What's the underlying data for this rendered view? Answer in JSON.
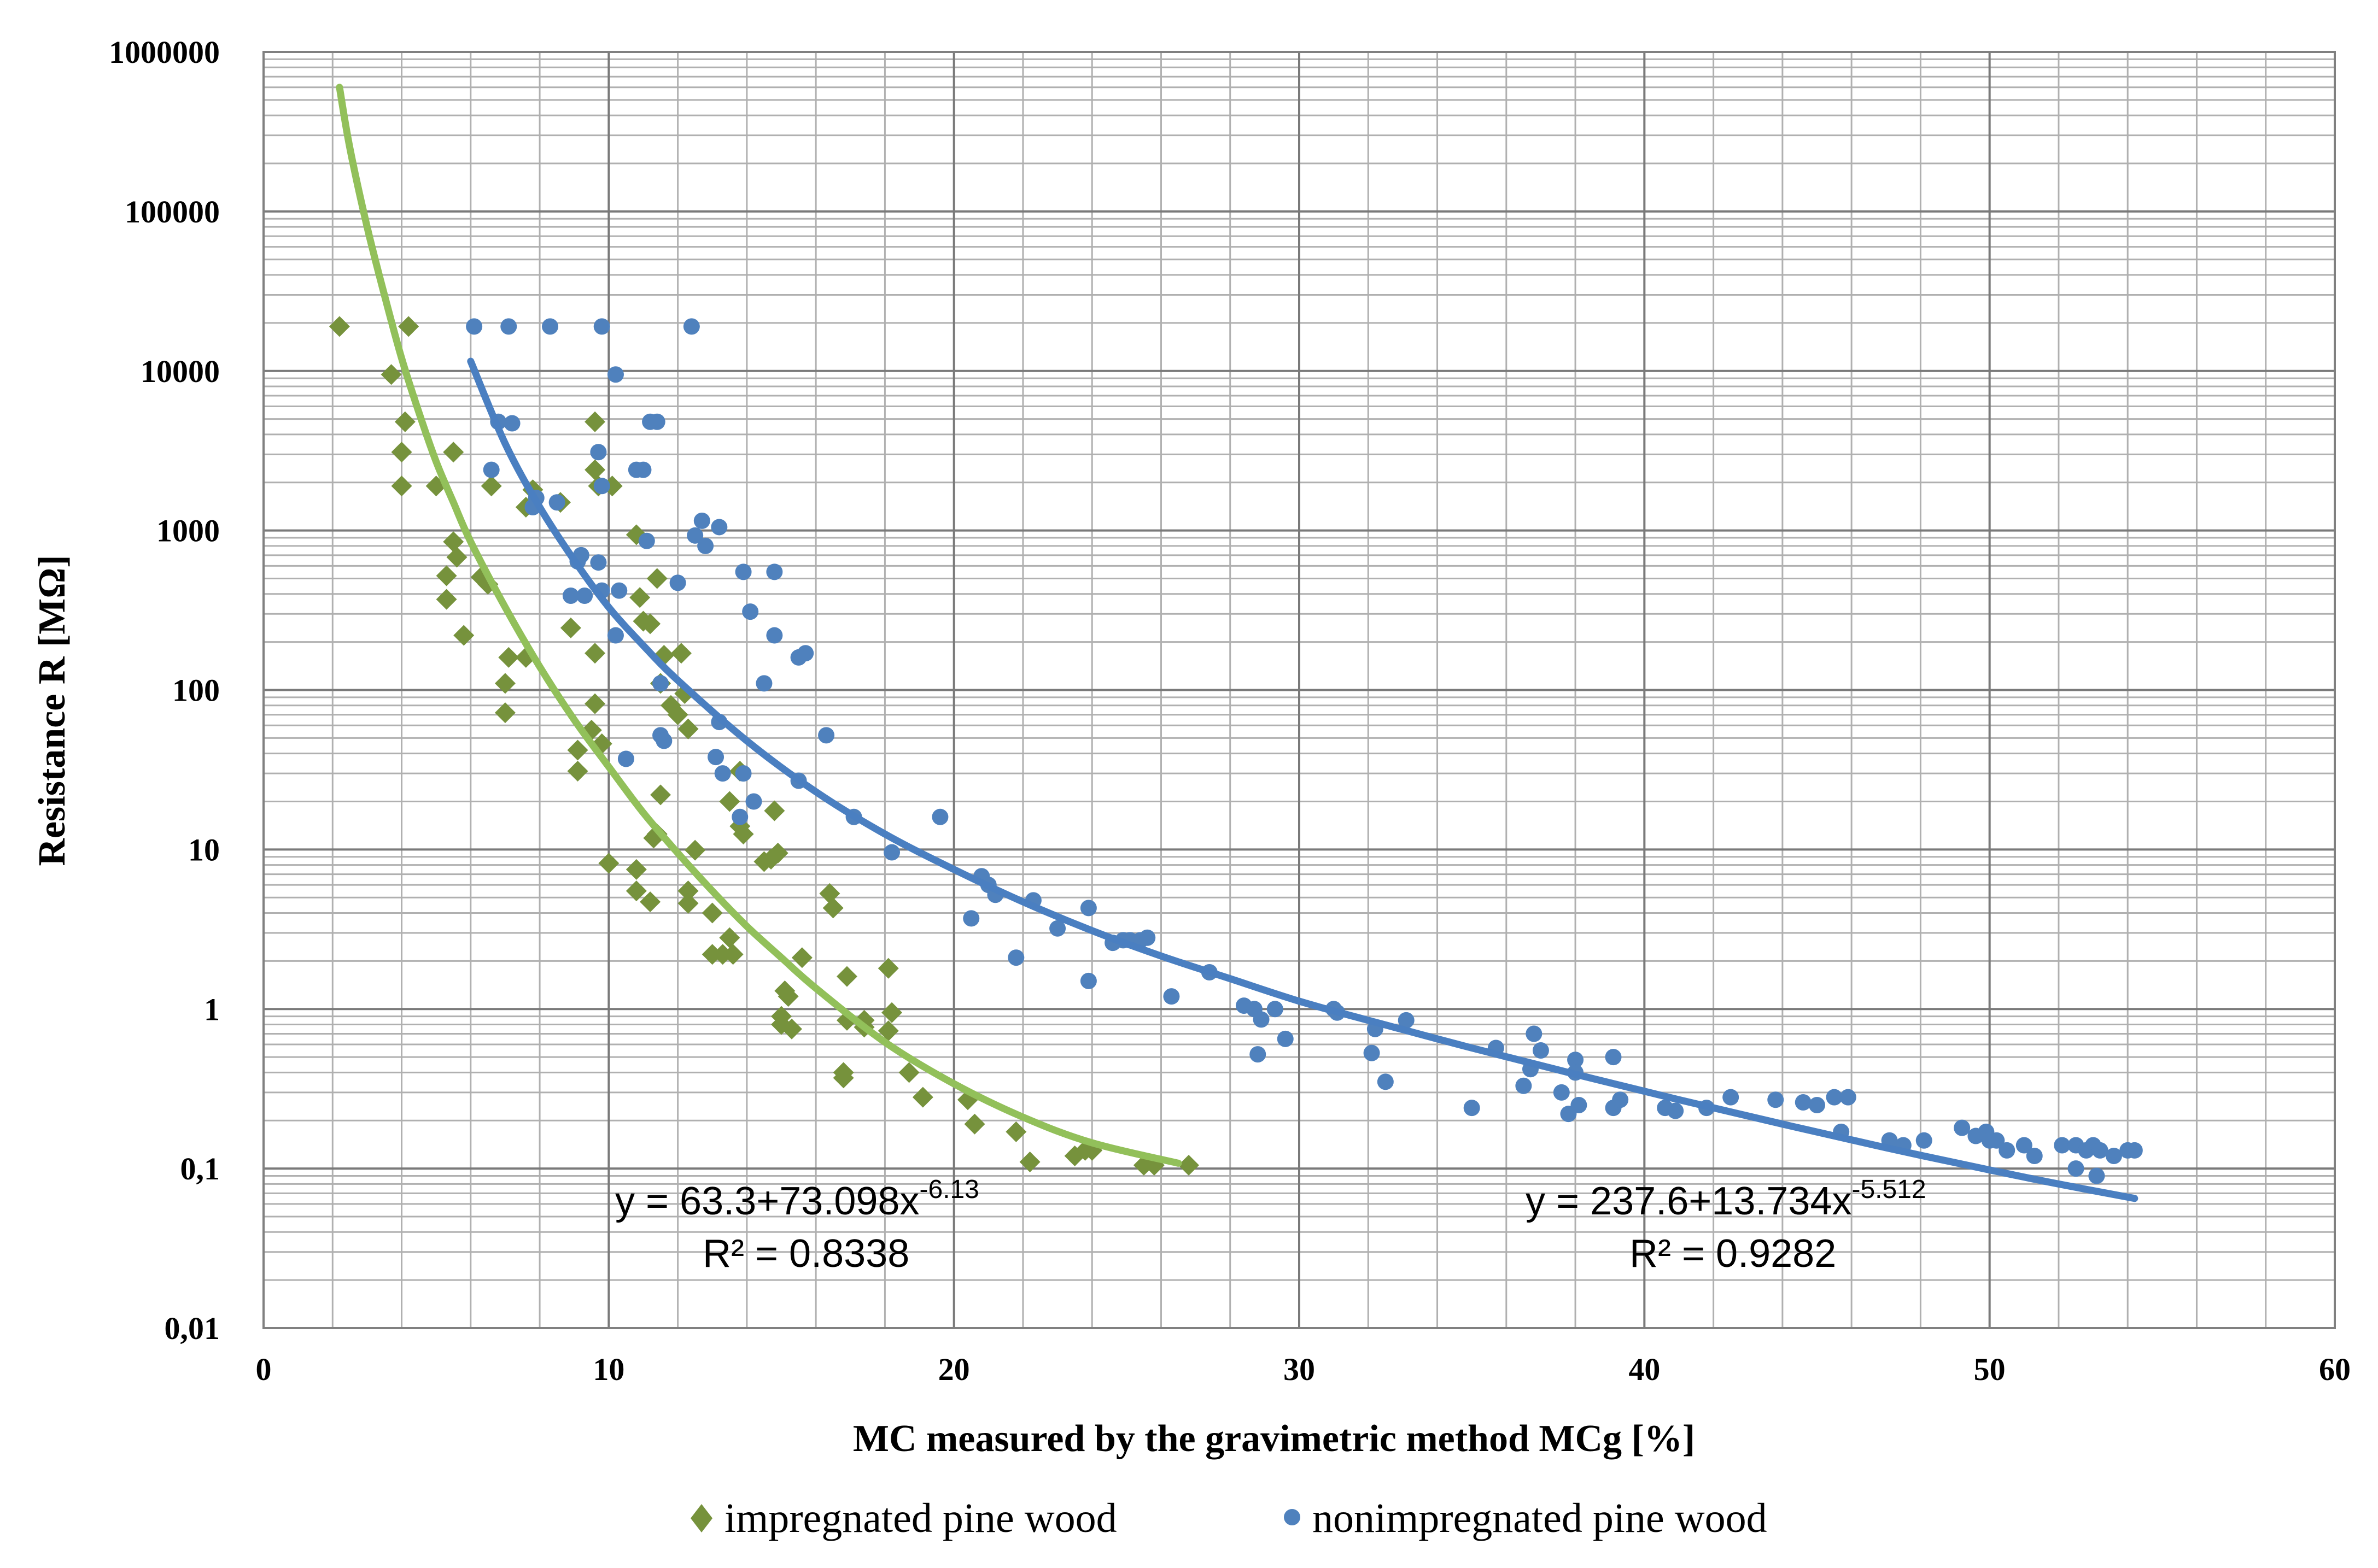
{
  "chart_data": {
    "type": "scatter",
    "xlabel": "MC measured by the gravimetric method MCg [%]",
    "ylabel": "Resistance R [MΩ]",
    "xlim": [
      0,
      60
    ],
    "ylim_log10": [
      -2,
      6
    ],
    "x_ticks": [
      0,
      10,
      20,
      30,
      40,
      50,
      60
    ],
    "y_ticks": [
      {
        "value": 1000000,
        "label": "1000000"
      },
      {
        "value": 100000,
        "label": "100000"
      },
      {
        "value": 10000,
        "label": "10000"
      },
      {
        "value": 1000,
        "label": "1000"
      },
      {
        "value": 100,
        "label": "100"
      },
      {
        "value": 10,
        "label": "10"
      },
      {
        "value": 1,
        "label": "1"
      },
      {
        "value": 0.1,
        "label": "0,1"
      },
      {
        "value": 0.01,
        "label": "0,01"
      }
    ],
    "grid": "major and minor, x step 2, log y minor",
    "legend_position": "bottom",
    "series": [
      {
        "name": "impregnated pine wood",
        "marker": "diamond",
        "color": "#76923C",
        "points": [
          [
            2.2,
            19000
          ],
          [
            3.7,
            9500
          ],
          [
            4.2,
            19000
          ],
          [
            4.1,
            4800
          ],
          [
            4.0,
            3100
          ],
          [
            4.0,
            1900
          ],
          [
            5.0,
            1900
          ],
          [
            5.5,
            3100
          ],
          [
            5.5,
            850
          ],
          [
            5.6,
            680
          ],
          [
            5.3,
            520
          ],
          [
            5.3,
            370
          ],
          [
            5.8,
            220
          ],
          [
            6.3,
            510
          ],
          [
            6.5,
            460
          ],
          [
            6.6,
            1900
          ],
          [
            7.1,
            160
          ],
          [
            7.0,
            110
          ],
          [
            7.0,
            72
          ],
          [
            7.6,
            1400
          ],
          [
            7.8,
            1800
          ],
          [
            7.6,
            160
          ],
          [
            8.6,
            1500
          ],
          [
            8.9,
            245
          ],
          [
            9.1,
            42
          ],
          [
            9.1,
            31
          ],
          [
            9.6,
            4800
          ],
          [
            9.6,
            2400
          ],
          [
            9.7,
            1900
          ],
          [
            10.1,
            1900
          ],
          [
            9.6,
            170
          ],
          [
            9.6,
            82
          ],
          [
            9.5,
            56
          ],
          [
            9.8,
            46
          ],
          [
            10.0,
            8.2
          ],
          [
            10.8,
            940
          ],
          [
            10.9,
            380
          ],
          [
            11.0,
            270
          ],
          [
            11.2,
            260
          ],
          [
            11.4,
            500
          ],
          [
            11.5,
            110
          ],
          [
            11.6,
            165
          ],
          [
            11.8,
            80
          ],
          [
            12.1,
            170
          ],
          [
            12.2,
            95
          ],
          [
            12.0,
            70
          ],
          [
            12.3,
            57
          ],
          [
            11.5,
            22
          ],
          [
            11.4,
            12.5
          ],
          [
            11.3,
            11.8
          ],
          [
            10.8,
            7.5
          ],
          [
            10.8,
            5.5
          ],
          [
            11.2,
            4.7
          ],
          [
            12.3,
            5.5
          ],
          [
            12.3,
            4.6
          ],
          [
            12.5,
            9.9
          ],
          [
            13.0,
            4.0
          ],
          [
            13.0,
            2.2
          ],
          [
            13.3,
            2.2
          ],
          [
            13.5,
            2.8
          ],
          [
            13.6,
            2.2
          ],
          [
            13.5,
            20
          ],
          [
            13.8,
            14
          ],
          [
            13.9,
            12.5
          ],
          [
            13.8,
            31
          ],
          [
            14.8,
            17.5
          ],
          [
            14.9,
            9.5
          ],
          [
            14.7,
            8.7
          ],
          [
            14.5,
            8.4
          ],
          [
            15.1,
            1.3
          ],
          [
            15.2,
            1.2
          ],
          [
            15.0,
            0.9
          ],
          [
            15.0,
            0.8
          ],
          [
            15.3,
            0.75
          ],
          [
            15.6,
            2.1
          ],
          [
            16.4,
            5.3
          ],
          [
            16.5,
            4.3
          ],
          [
            16.9,
            1.6
          ],
          [
            16.9,
            0.85
          ],
          [
            17.4,
            0.85
          ],
          [
            17.4,
            0.77
          ],
          [
            16.8,
            0.4
          ],
          [
            16.8,
            0.37
          ],
          [
            18.1,
            1.8
          ],
          [
            18.1,
            0.73
          ],
          [
            18.2,
            0.95
          ],
          [
            18.7,
            0.4
          ],
          [
            19.1,
            0.28
          ],
          [
            20.4,
            0.27
          ],
          [
            20.6,
            0.19
          ],
          [
            21.8,
            0.17
          ],
          [
            22.2,
            0.11
          ],
          [
            23.5,
            0.12
          ],
          [
            23.8,
            0.13
          ],
          [
            24.0,
            0.13
          ],
          [
            25.5,
            0.105
          ],
          [
            25.8,
            0.105
          ],
          [
            26.8,
            0.105
          ]
        ],
        "trendline": {
          "label": "y = 63.3+73.098x",
          "exponent": "-6.13",
          "r2_label": "R² =  0.8338",
          "curve": [
            [
              2.2,
              600000
            ],
            [
              2.5,
              250000
            ],
            [
              3.0,
              80000
            ],
            [
              3.5,
              30000
            ],
            [
              4.0,
              12000
            ],
            [
              4.5,
              5500
            ],
            [
              5.0,
              2700
            ],
            [
              5.5,
              1500
            ],
            [
              6.0,
              850
            ],
            [
              7.0,
              330
            ],
            [
              8.0,
              140
            ],
            [
              9.0,
              65
            ],
            [
              10.0,
              33
            ],
            [
              11.0,
              17
            ],
            [
              12.0,
              9.5
            ],
            [
              13.0,
              5.5
            ],
            [
              14.0,
              3.3
            ],
            [
              15.0,
              2.1
            ],
            [
              16.0,
              1.35
            ],
            [
              18.0,
              0.62
            ],
            [
              20.0,
              0.34
            ],
            [
              22.0,
              0.21
            ],
            [
              24.0,
              0.145
            ],
            [
              26.5,
              0.108
            ]
          ]
        }
      },
      {
        "name": "nonimpregnated pine wood",
        "marker": "circle",
        "color": "#4F81BD",
        "points": [
          [
            6.1,
            19000
          ],
          [
            7.1,
            19000
          ],
          [
            8.3,
            19000
          ],
          [
            9.8,
            19000
          ],
          [
            12.4,
            19000
          ],
          [
            10.2,
            9500
          ],
          [
            11.2,
            4800
          ],
          [
            11.4,
            4800
          ],
          [
            6.8,
            4800
          ],
          [
            7.2,
            4700
          ],
          [
            6.6,
            2400
          ],
          [
            9.7,
            3100
          ],
          [
            9.8,
            1900
          ],
          [
            10.8,
            2400
          ],
          [
            11.0,
            2400
          ],
          [
            7.9,
            1600
          ],
          [
            8.5,
            1500
          ],
          [
            7.8,
            1400
          ],
          [
            12.7,
            1150
          ],
          [
            13.2,
            1050
          ],
          [
            12.5,
            930
          ],
          [
            12.8,
            800
          ],
          [
            9.2,
            700
          ],
          [
            9.1,
            640
          ],
          [
            11.1,
            860
          ],
          [
            9.7,
            630
          ],
          [
            13.9,
            550
          ],
          [
            14.8,
            550
          ],
          [
            9.3,
            390
          ],
          [
            8.9,
            390
          ],
          [
            9.8,
            420
          ],
          [
            10.3,
            420
          ],
          [
            12.0,
            470
          ],
          [
            14.1,
            310
          ],
          [
            10.2,
            220
          ],
          [
            14.8,
            220
          ],
          [
            15.5,
            160
          ],
          [
            15.7,
            170
          ],
          [
            14.5,
            110
          ],
          [
            11.5,
            110
          ],
          [
            13.2,
            63
          ],
          [
            16.3,
            52
          ],
          [
            11.5,
            52
          ],
          [
            11.6,
            48
          ],
          [
            10.5,
            37
          ],
          [
            13.1,
            38
          ],
          [
            13.3,
            30
          ],
          [
            13.9,
            30
          ],
          [
            13.8,
            16
          ],
          [
            15.5,
            27
          ],
          [
            14.2,
            20
          ],
          [
            17.1,
            16
          ],
          [
            18.2,
            9.6
          ],
          [
            19.6,
            16
          ],
          [
            20.8,
            6.8
          ],
          [
            21.0,
            6.0
          ],
          [
            20.5,
            3.7
          ],
          [
            21.2,
            5.2
          ],
          [
            22.3,
            4.8
          ],
          [
            23.0,
            3.2
          ],
          [
            23.9,
            4.3
          ],
          [
            21.8,
            2.1
          ],
          [
            23.9,
            1.5
          ],
          [
            24.6,
            2.6
          ],
          [
            24.9,
            2.7
          ],
          [
            25.1,
            2.7
          ],
          [
            25.4,
            2.7
          ],
          [
            25.6,
            2.8
          ],
          [
            26.3,
            1.2
          ],
          [
            27.4,
            1.7
          ],
          [
            28.4,
            1.05
          ],
          [
            28.7,
            1.0
          ],
          [
            28.9,
            0.86
          ],
          [
            28.8,
            0.52
          ],
          [
            29.3,
            1.0
          ],
          [
            29.6,
            0.65
          ],
          [
            31.0,
            1.0
          ],
          [
            31.1,
            0.95
          ],
          [
            32.2,
            0.75
          ],
          [
            32.1,
            0.53
          ],
          [
            32.5,
            0.35
          ],
          [
            33.1,
            0.85
          ],
          [
            35.0,
            0.24
          ],
          [
            35.7,
            0.57
          ],
          [
            36.5,
            0.33
          ],
          [
            36.7,
            0.42
          ],
          [
            36.8,
            0.7
          ],
          [
            37.0,
            0.55
          ],
          [
            37.6,
            0.3
          ],
          [
            37.8,
            0.22
          ],
          [
            38.0,
            0.48
          ],
          [
            38.0,
            0.4
          ],
          [
            38.1,
            0.25
          ],
          [
            39.1,
            0.5
          ],
          [
            39.1,
            0.24
          ],
          [
            39.3,
            0.27
          ],
          [
            40.6,
            0.24
          ],
          [
            40.9,
            0.23
          ],
          [
            41.8,
            0.24
          ],
          [
            42.5,
            0.28
          ],
          [
            43.8,
            0.27
          ],
          [
            44.6,
            0.26
          ],
          [
            45.0,
            0.25
          ],
          [
            45.5,
            0.28
          ],
          [
            45.9,
            0.28
          ],
          [
            45.7,
            0.17
          ],
          [
            47.1,
            0.15
          ],
          [
            47.5,
            0.14
          ],
          [
            48.1,
            0.15
          ],
          [
            49.2,
            0.18
          ],
          [
            49.6,
            0.16
          ],
          [
            49.9,
            0.17
          ],
          [
            50.2,
            0.15
          ],
          [
            50.5,
            0.13
          ],
          [
            51.0,
            0.14
          ],
          [
            51.3,
            0.12
          ],
          [
            52.1,
            0.14
          ],
          [
            52.5,
            0.14
          ],
          [
            52.8,
            0.13
          ],
          [
            53.0,
            0.14
          ],
          [
            53.2,
            0.13
          ],
          [
            53.6,
            0.12
          ],
          [
            54.0,
            0.13
          ],
          [
            54.2,
            0.13
          ],
          [
            52.5,
            0.1
          ],
          [
            53.1,
            0.09
          ],
          [
            50.0,
            0.15
          ]
        ],
        "trendline": {
          "label": "y = 237.6+13.734x",
          "exponent": "-5.512",
          "r2_label": "R² =  0.9282",
          "curve": [
            [
              6.0,
              11500
            ],
            [
              7.0,
              3500
            ],
            [
              8.0,
              1400
            ],
            [
              9.0,
              650
            ],
            [
              10.0,
              330
            ],
            [
              11.0,
              190
            ],
            [
              12.0,
              115
            ],
            [
              14.0,
              48
            ],
            [
              16.0,
              23
            ],
            [
              18.0,
              12.5
            ],
            [
              20.0,
              7.5
            ],
            [
              22.0,
              4.7
            ],
            [
              24.0,
              3.1
            ],
            [
              26.0,
              2.15
            ],
            [
              28.0,
              1.55
            ],
            [
              30.0,
              1.12
            ],
            [
              32.0,
              0.85
            ],
            [
              35.0,
              0.57
            ],
            [
              38.0,
              0.39
            ],
            [
              41.0,
              0.27
            ],
            [
              44.0,
              0.19
            ],
            [
              47.0,
              0.135
            ],
            [
              50.0,
              0.098
            ],
            [
              52.0,
              0.08
            ],
            [
              54.2,
              0.065
            ]
          ]
        }
      }
    ]
  }
}
